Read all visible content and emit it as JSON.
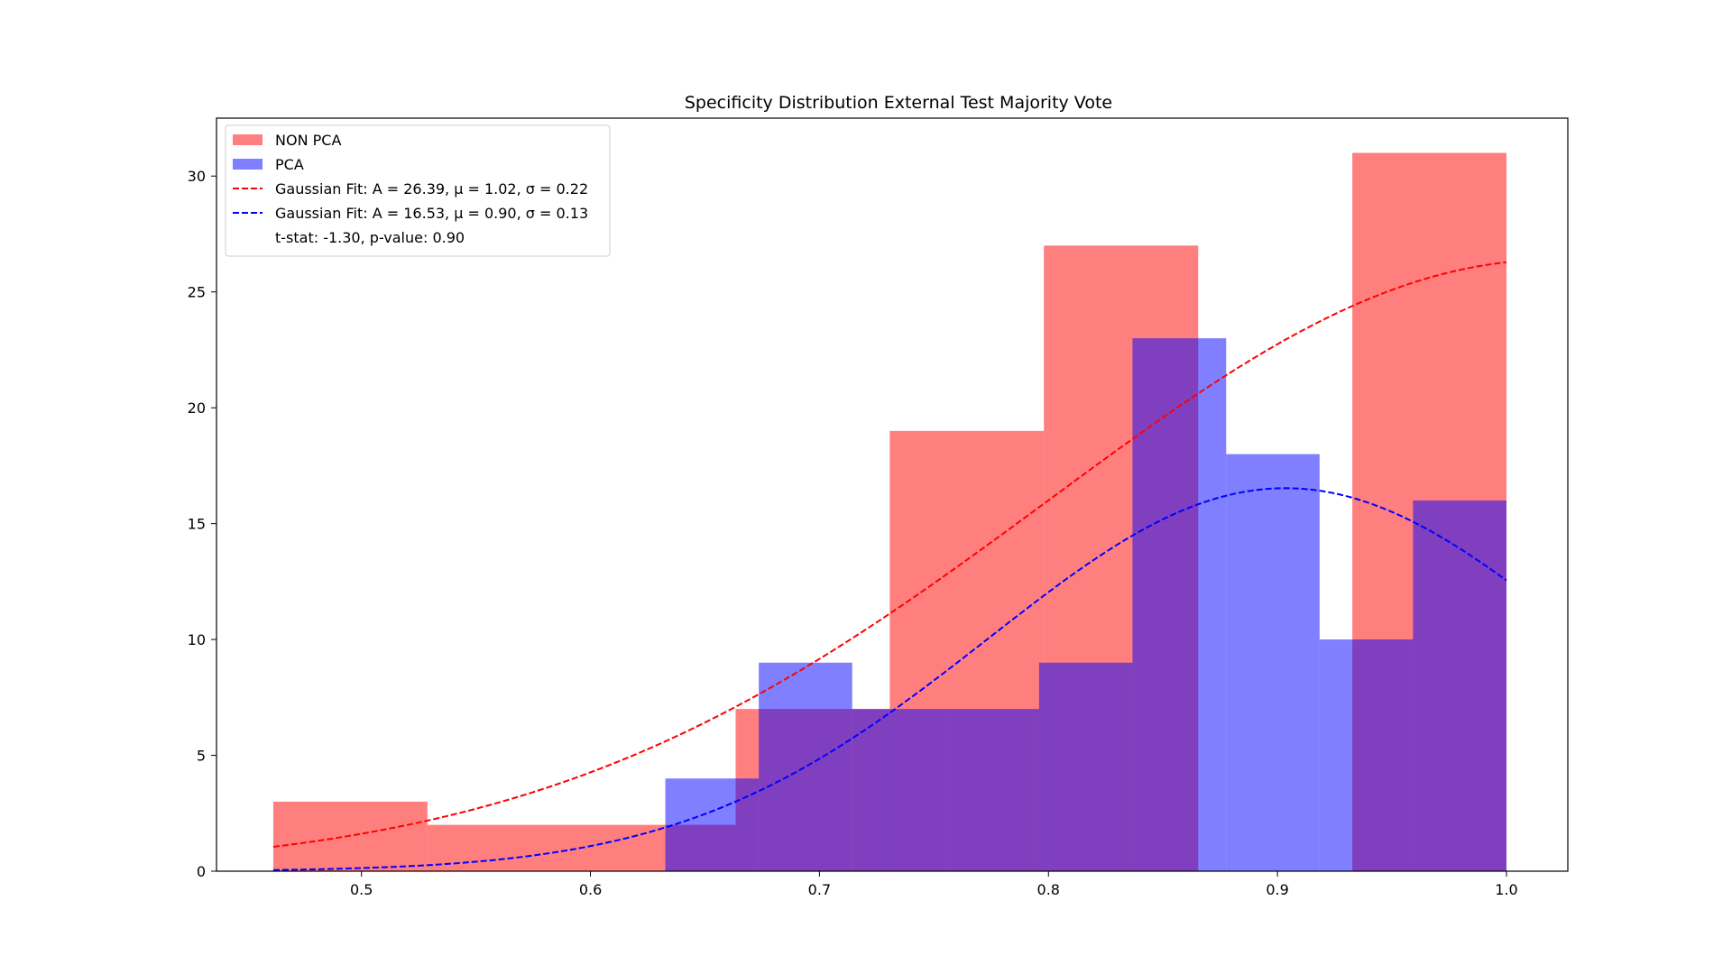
{
  "chart_data": {
    "type": "bar",
    "title": "Specificity Distribution External Test Majority Vote",
    "xlabel": "",
    "ylabel": "",
    "xlim": [
      0.4367,
      1.0268
    ],
    "ylim": [
      0,
      32.5
    ],
    "xticks": [
      0.5,
      0.6,
      0.7,
      0.8,
      0.9,
      1.0
    ],
    "xtick_labels": [
      "0.5",
      "0.6",
      "0.7",
      "0.8",
      "0.9",
      "1.0"
    ],
    "yticks": [
      0,
      5,
      10,
      15,
      20,
      25,
      30
    ],
    "ytick_labels": [
      "0",
      "5",
      "10",
      "15",
      "20",
      "25",
      "30"
    ],
    "grid": false,
    "legend_position": "top-left",
    "series": [
      {
        "name": "NON PCA",
        "kind": "histogram",
        "color": "#ff0000",
        "opacity": 0.5,
        "bin_edges": [
          0.4615,
          0.5288,
          0.5961,
          0.6634,
          0.7307,
          0.798,
          0.8654,
          0.9327,
          1.0
        ],
        "counts": [
          3,
          2,
          2,
          7,
          19,
          27,
          0,
          31
        ],
        "note_bins": "two-level counts reflect visible steps"
      },
      {
        "name": "PCA",
        "kind": "histogram",
        "color": "#0000ff",
        "opacity": 0.5,
        "bin_edges": [
          0.6327,
          0.6735,
          0.7143,
          0.7551,
          0.7959,
          0.8367,
          0.8776,
          0.9184,
          0.9592,
          1.0
        ],
        "counts": [
          4,
          9,
          7,
          7,
          9,
          23,
          18,
          10,
          16
        ]
      },
      {
        "name": "Gaussian Fit: A = 26.39, μ = 1.02, σ = 0.22",
        "kind": "fit",
        "color": "#ff0000",
        "dash": "dashed",
        "A": 26.39,
        "mu": 1.02,
        "sigma": 0.22,
        "x_range": [
          0.4615,
          1.0
        ]
      },
      {
        "name": "Gaussian Fit: A = 16.53, μ = 0.90, σ = 0.13",
        "kind": "fit",
        "color": "#0000ff",
        "dash": "dashed",
        "A": 16.53,
        "mu": 0.9035,
        "sigma": 0.13,
        "x_range": [
          0.4615,
          1.0
        ]
      }
    ],
    "annotation": "t-stat: -1.30, p-value: 0.90"
  },
  "legend": {
    "items": [
      {
        "label": "NON PCA",
        "swatch": "patch",
        "color": "#ff0000"
      },
      {
        "label": "PCA",
        "swatch": "patch",
        "color": "#0000ff"
      },
      {
        "label": "Gaussian Fit: A = 26.39, μ = 1.02, σ = 0.22",
        "swatch": "dash",
        "color": "#ff0000"
      },
      {
        "label": "Gaussian Fit: A = 16.53, μ = 0.90, σ = 0.13",
        "swatch": "dash",
        "color": "#0000ff"
      },
      {
        "label": "t-stat: -1.30, p-value: 0.90",
        "swatch": "none",
        "color": "#ffffff"
      }
    ]
  }
}
